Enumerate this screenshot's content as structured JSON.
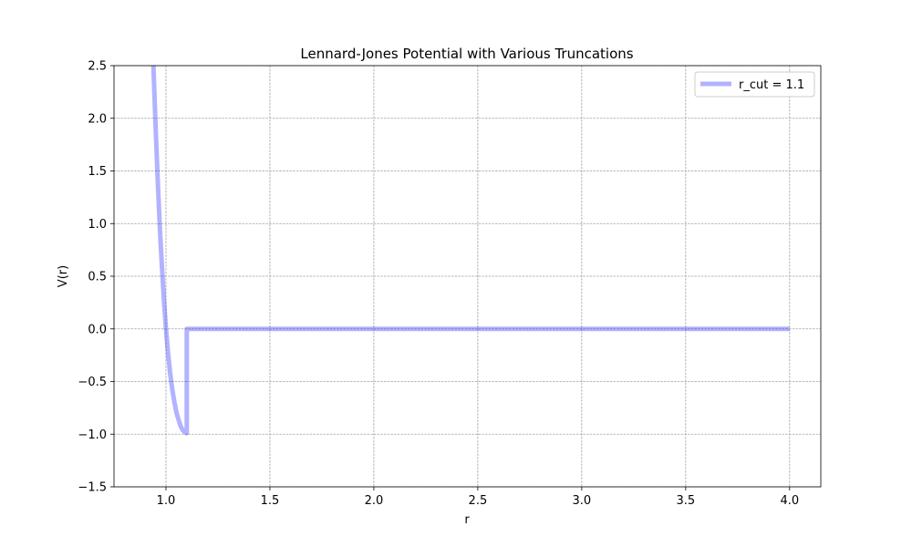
{
  "chart_data": {
    "type": "line",
    "title": "Lennard-Jones Potential with Various Truncations",
    "xlabel": "r",
    "ylabel": "V(r)",
    "xlim": [
      0.75,
      4.15
    ],
    "ylim": [
      -1.5,
      2.5
    ],
    "xticks": [
      1.0,
      1.5,
      2.0,
      2.5,
      3.0,
      3.5,
      4.0
    ],
    "xtick_labels": [
      "1.0",
      "1.5",
      "2.0",
      "2.5",
      "3.0",
      "3.5",
      "4.0"
    ],
    "yticks": [
      -1.5,
      -1.0,
      -0.5,
      0.0,
      0.5,
      1.0,
      1.5,
      2.0,
      2.5
    ],
    "ytick_labels": [
      "−1.5",
      "−1.0",
      "−0.5",
      "0.0",
      "0.5",
      "1.0",
      "1.5",
      "2.0",
      "2.5"
    ],
    "grid": true,
    "legend_position": "top-right",
    "series": [
      {
        "name": "r_cut = 1.1",
        "color": "#0000ff",
        "alpha": 0.3,
        "x": [
          0.9395,
          0.95,
          0.96,
          0.97,
          0.98,
          0.99,
          1.0,
          1.01,
          1.02,
          1.03,
          1.04,
          1.05,
          1.06,
          1.07,
          1.08,
          1.09,
          1.1,
          1.1,
          1.5,
          2.0,
          2.5,
          3.0,
          3.5,
          4.0
        ],
        "y": [
          2.5,
          1.93,
          1.43,
          0.98,
          0.61,
          0.28,
          0.0,
          -0.23,
          -0.42,
          -0.57,
          -0.69,
          -0.79,
          -0.86,
          -0.92,
          -0.96,
          -0.98,
          -0.99,
          0.0,
          0.0,
          0.0,
          0.0,
          0.0,
          0.0,
          0.0
        ]
      }
    ]
  }
}
